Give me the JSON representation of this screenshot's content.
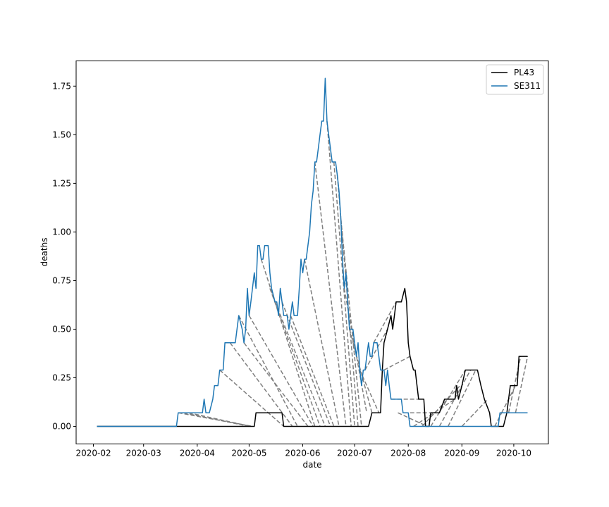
{
  "chart_data": {
    "type": "line",
    "xlabel": "date",
    "ylabel": "deaths",
    "x_ticks": [
      "2020-02",
      "2020-03",
      "2020-04",
      "2020-05",
      "2020-06",
      "2020-07",
      "2020-08",
      "2020-09",
      "2020-10"
    ],
    "y_ticks": [
      "0.00",
      "0.25",
      "0.50",
      "0.75",
      "1.00",
      "1.25",
      "1.50",
      "1.75"
    ],
    "xlim": [
      "2020-01-22",
      "2020-10-21"
    ],
    "ylim": [
      -0.09,
      1.88
    ],
    "legend_placement": "top-right",
    "grid": false,
    "colors": {
      "PL43": "#000000",
      "SE311": "#1f77b4",
      "connectors": "#7f7f7f"
    },
    "series": [
      {
        "name": "PL43",
        "points": [
          [
            "2020-02-03",
            0
          ],
          [
            "2020-05-04",
            0
          ],
          [
            "2020-05-05",
            0.07
          ],
          [
            "2020-05-20",
            0.07
          ],
          [
            "2020-05-21",
            0
          ],
          [
            "2020-07-09",
            0
          ],
          [
            "2020-07-11",
            0.07
          ],
          [
            "2020-07-16",
            0.07
          ],
          [
            "2020-07-17",
            0.29
          ],
          [
            "2020-07-18",
            0.43
          ],
          [
            "2020-07-20",
            0.5
          ],
          [
            "2020-07-22",
            0.57
          ],
          [
            "2020-07-23",
            0.5
          ],
          [
            "2020-07-25",
            0.64
          ],
          [
            "2020-07-28",
            0.64
          ],
          [
            "2020-07-30",
            0.71
          ],
          [
            "2020-07-31",
            0.64
          ],
          [
            "2020-08-01",
            0.43
          ],
          [
            "2020-08-02",
            0.36
          ],
          [
            "2020-08-04",
            0.29
          ],
          [
            "2020-08-05",
            0.29
          ],
          [
            "2020-08-07",
            0.14
          ],
          [
            "2020-08-10",
            0.14
          ],
          [
            "2020-08-11",
            0
          ],
          [
            "2020-08-13",
            0
          ],
          [
            "2020-08-14",
            0.07
          ],
          [
            "2020-08-19",
            0.07
          ],
          [
            "2020-08-22",
            0.14
          ],
          [
            "2020-08-28",
            0.14
          ],
          [
            "2020-08-29",
            0.21
          ],
          [
            "2020-08-30",
            0.14
          ],
          [
            "2020-09-01",
            0.21
          ],
          [
            "2020-09-03",
            0.29
          ],
          [
            "2020-09-10",
            0.29
          ],
          [
            "2020-09-12",
            0.21
          ],
          [
            "2020-09-14",
            0.14
          ],
          [
            "2020-09-17",
            0.07
          ],
          [
            "2020-09-18",
            0
          ],
          [
            "2020-09-25",
            0
          ],
          [
            "2020-09-27",
            0.07
          ],
          [
            "2020-09-29",
            0.21
          ],
          [
            "2020-10-03",
            0.21
          ],
          [
            "2020-10-04",
            0.36
          ],
          [
            "2020-10-09",
            0.36
          ]
        ]
      },
      {
        "name": "SE311",
        "points": [
          [
            "2020-02-03",
            0
          ],
          [
            "2020-03-20",
            0
          ],
          [
            "2020-03-21",
            0.07
          ],
          [
            "2020-04-04",
            0.07
          ],
          [
            "2020-04-05",
            0.14
          ],
          [
            "2020-04-06",
            0.07
          ],
          [
            "2020-04-08",
            0.07
          ],
          [
            "2020-04-10",
            0.14
          ],
          [
            "2020-04-11",
            0.21
          ],
          [
            "2020-04-13",
            0.21
          ],
          [
            "2020-04-14",
            0.29
          ],
          [
            "2020-04-16",
            0.29
          ],
          [
            "2020-04-17",
            0.43
          ],
          [
            "2020-04-23",
            0.43
          ],
          [
            "2020-04-25",
            0.57
          ],
          [
            "2020-04-27",
            0.5
          ],
          [
            "2020-04-28",
            0.43
          ],
          [
            "2020-04-29",
            0.5
          ],
          [
            "2020-04-30",
            0.71
          ],
          [
            "2020-05-01",
            0.57
          ],
          [
            "2020-05-02",
            0.64
          ],
          [
            "2020-05-04",
            0.79
          ],
          [
            "2020-05-05",
            0.71
          ],
          [
            "2020-05-06",
            0.93
          ],
          [
            "2020-05-07",
            0.93
          ],
          [
            "2020-05-08",
            0.86
          ],
          [
            "2020-05-09",
            0.86
          ],
          [
            "2020-05-10",
            0.93
          ],
          [
            "2020-05-12",
            0.93
          ],
          [
            "2020-05-13",
            0.79
          ],
          [
            "2020-05-14",
            0.71
          ],
          [
            "2020-05-16",
            0.64
          ],
          [
            "2020-05-17",
            0.64
          ],
          [
            "2020-05-18",
            0.57
          ],
          [
            "2020-05-19",
            0.71
          ],
          [
            "2020-05-20",
            0.64
          ],
          [
            "2020-05-21",
            0.57
          ],
          [
            "2020-05-23",
            0.57
          ],
          [
            "2020-05-24",
            0.5
          ],
          [
            "2020-05-25",
            0.57
          ],
          [
            "2020-05-26",
            0.64
          ],
          [
            "2020-05-27",
            0.57
          ],
          [
            "2020-05-29",
            0.57
          ],
          [
            "2020-05-30",
            0.71
          ],
          [
            "2020-05-31",
            0.86
          ],
          [
            "2020-06-01",
            0.79
          ],
          [
            "2020-06-02",
            0.86
          ],
          [
            "2020-06-03",
            0.86
          ],
          [
            "2020-06-05",
            1.0
          ],
          [
            "2020-06-06",
            1.14
          ],
          [
            "2020-06-07",
            1.21
          ],
          [
            "2020-06-08",
            1.36
          ],
          [
            "2020-06-09",
            1.36
          ],
          [
            "2020-06-10",
            1.43
          ],
          [
            "2020-06-11",
            1.5
          ],
          [
            "2020-06-12",
            1.57
          ],
          [
            "2020-06-13",
            1.57
          ],
          [
            "2020-06-14",
            1.79
          ],
          [
            "2020-06-15",
            1.57
          ],
          [
            "2020-06-16",
            1.5
          ],
          [
            "2020-06-17",
            1.43
          ],
          [
            "2020-06-18",
            1.36
          ],
          [
            "2020-06-20",
            1.36
          ],
          [
            "2020-06-21",
            1.29
          ],
          [
            "2020-06-22",
            1.21
          ],
          [
            "2020-06-23",
            1.07
          ],
          [
            "2020-06-24",
            0.86
          ],
          [
            "2020-06-25",
            0.71
          ],
          [
            "2020-06-26",
            0.79
          ],
          [
            "2020-06-27",
            0.64
          ],
          [
            "2020-06-28",
            0.5
          ],
          [
            "2020-06-30",
            0.5
          ],
          [
            "2020-07-01",
            0.43
          ],
          [
            "2020-07-02",
            0.36
          ],
          [
            "2020-07-03",
            0.43
          ],
          [
            "2020-07-04",
            0.29
          ],
          [
            "2020-07-05",
            0.21
          ],
          [
            "2020-07-06",
            0.29
          ],
          [
            "2020-07-07",
            0.29
          ],
          [
            "2020-07-08",
            0.36
          ],
          [
            "2020-07-09",
            0.43
          ],
          [
            "2020-07-10",
            0.36
          ],
          [
            "2020-07-11",
            0.36
          ],
          [
            "2020-07-12",
            0.43
          ],
          [
            "2020-07-14",
            0.43
          ],
          [
            "2020-07-15",
            0.36
          ],
          [
            "2020-07-16",
            0.29
          ],
          [
            "2020-07-18",
            0.29
          ],
          [
            "2020-07-19",
            0.21
          ],
          [
            "2020-07-20",
            0.29
          ],
          [
            "2020-07-21",
            0.21
          ],
          [
            "2020-07-22",
            0.14
          ],
          [
            "2020-07-28",
            0.14
          ],
          [
            "2020-07-29",
            0.07
          ],
          [
            "2020-08-01",
            0.07
          ],
          [
            "2020-08-02",
            0
          ],
          [
            "2020-09-22",
            0
          ],
          [
            "2020-09-23",
            0.07
          ],
          [
            "2020-10-09",
            0.07
          ]
        ]
      }
    ],
    "connector_lines": [
      [
        [
          "2020-03-21",
          0.07
        ],
        [
          "2020-05-03",
          0
        ]
      ],
      [
        [
          "2020-03-24",
          0.07
        ],
        [
          "2020-05-01",
          0
        ]
      ],
      [
        [
          "2020-03-27",
          0.07
        ],
        [
          "2020-05-02",
          0
        ]
      ],
      [
        [
          "2020-04-14",
          0.29
        ],
        [
          "2020-05-21",
          0
        ]
      ],
      [
        [
          "2020-04-20",
          0.43
        ],
        [
          "2020-05-26",
          0
        ]
      ],
      [
        [
          "2020-04-25",
          0.57
        ],
        [
          "2020-05-29",
          0
        ]
      ],
      [
        [
          "2020-04-28",
          0.43
        ],
        [
          "2020-06-04",
          0
        ]
      ],
      [
        [
          "2020-05-01",
          0.57
        ],
        [
          "2020-06-07",
          0
        ]
      ],
      [
        [
          "2020-05-08",
          0.86
        ],
        [
          "2020-06-08",
          0
        ]
      ],
      [
        [
          "2020-05-13",
          0.71
        ],
        [
          "2020-06-11",
          0
        ]
      ],
      [
        [
          "2020-05-16",
          0.64
        ],
        [
          "2020-06-14",
          0
        ]
      ],
      [
        [
          "2020-05-20",
          0.64
        ],
        [
          "2020-06-17",
          0
        ]
      ],
      [
        [
          "2020-05-25",
          0.57
        ],
        [
          "2020-06-19",
          0
        ]
      ],
      [
        [
          "2020-06-02",
          0.86
        ],
        [
          "2020-06-22",
          0
        ]
      ],
      [
        [
          "2020-06-08",
          1.36
        ],
        [
          "2020-06-26",
          0
        ]
      ],
      [
        [
          "2020-06-15",
          1.57
        ],
        [
          "2020-06-29",
          0
        ]
      ],
      [
        [
          "2020-06-19",
          1.36
        ],
        [
          "2020-07-01",
          0
        ]
      ],
      [
        [
          "2020-06-21",
          1.29
        ],
        [
          "2020-07-03",
          0
        ]
      ],
      [
        [
          "2020-06-23",
          1.07
        ],
        [
          "2020-07-05",
          0
        ]
      ],
      [
        [
          "2020-06-25",
          0.71
        ],
        [
          "2020-07-08",
          0.07
        ]
      ],
      [
        [
          "2020-06-28",
          0.5
        ],
        [
          "2020-07-11",
          0.07
        ]
      ],
      [
        [
          "2020-07-04",
          0.29
        ],
        [
          "2020-07-15",
          0.07
        ]
      ],
      [
        [
          "2020-07-07",
          0.29
        ],
        [
          "2020-07-20",
          0.5
        ]
      ],
      [
        [
          "2020-07-12",
          0.43
        ],
        [
          "2020-07-25",
          0.64
        ]
      ],
      [
        [
          "2020-07-18",
          0.29
        ],
        [
          "2020-08-02",
          0.36
        ]
      ],
      [
        [
          "2020-07-22",
          0.14
        ],
        [
          "2020-08-07",
          0.14
        ]
      ],
      [
        [
          "2020-07-26",
          0.07
        ],
        [
          "2020-08-12",
          0
        ]
      ],
      [
        [
          "2020-08-02",
          0.07
        ],
        [
          "2020-08-20",
          0.07
        ]
      ],
      [
        [
          "2020-08-04",
          0
        ],
        [
          "2020-08-28",
          0.14
        ]
      ],
      [
        [
          "2020-08-09",
          0
        ],
        [
          "2020-08-31",
          0.21
        ]
      ],
      [
        [
          "2020-08-14",
          0
        ],
        [
          "2020-09-03",
          0.29
        ]
      ],
      [
        [
          "2020-08-19",
          0
        ],
        [
          "2020-09-06",
          0.29
        ]
      ],
      [
        [
          "2020-08-24",
          0
        ],
        [
          "2020-09-09",
          0.29
        ]
      ],
      [
        [
          "2020-09-01",
          0
        ],
        [
          "2020-09-16",
          0.14
        ]
      ],
      [
        [
          "2020-09-20",
          0
        ],
        [
          "2020-09-24",
          0.07
        ]
      ],
      [
        [
          "2020-09-24",
          0.07
        ],
        [
          "2020-10-02",
          0.21
        ]
      ],
      [
        [
          "2020-09-28",
          0.07
        ],
        [
          "2020-10-05",
          0.36
        ]
      ],
      [
        [
          "2020-10-02",
          0.07
        ],
        [
          "2020-10-09",
          0.36
        ]
      ]
    ]
  }
}
